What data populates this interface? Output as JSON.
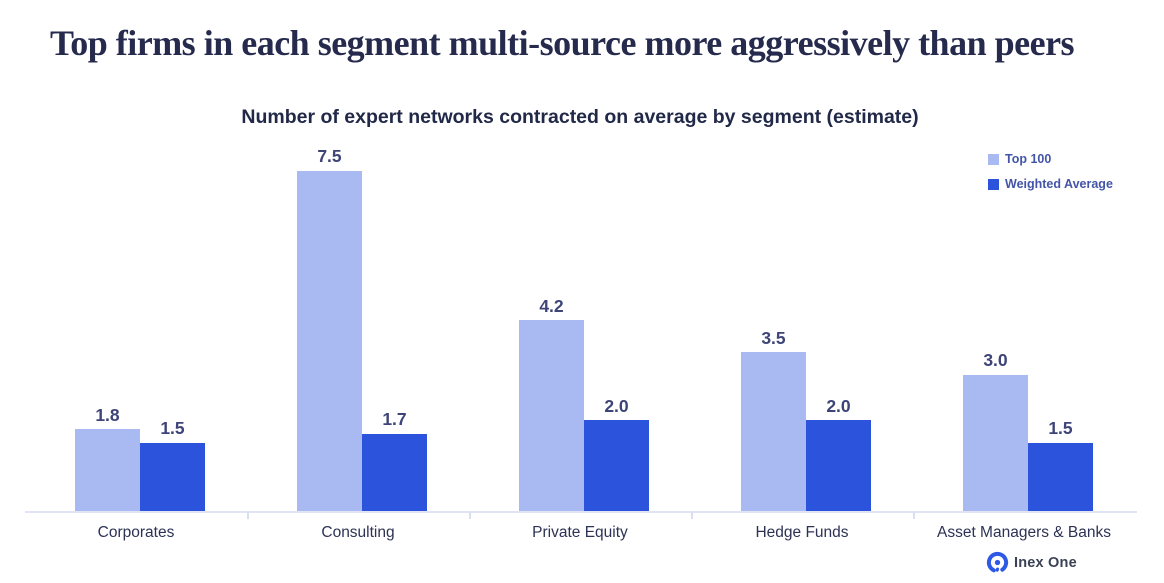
{
  "title": "Top firms in each segment multi-source more aggressively than peers",
  "chart_data": {
    "type": "bar",
    "title": "Number of expert networks contracted on average by segment (estimate)",
    "categories": [
      "Corporates",
      "Consulting",
      "Private Equity",
      "Hedge Funds",
      "Asset Managers & Banks"
    ],
    "series": [
      {
        "name": "Top 100",
        "color": "#A9BAF2",
        "values": [
          1.8,
          7.5,
          4.2,
          3.5,
          3.0
        ]
      },
      {
        "name": "Weighted Average",
        "color": "#2C53DC",
        "values": [
          1.5,
          1.7,
          2.0,
          2.0,
          1.5
        ]
      }
    ],
    "value_label_decimals": 1,
    "ylim": [
      0,
      7.5
    ],
    "grid": false,
    "legend_position": "top-right",
    "xlabel": "",
    "ylabel": ""
  },
  "colors": {
    "title_text": "#262B4E",
    "value_label_text": "#3E4477",
    "category_label_text": "#2C3254",
    "legend_text": "#4355A8",
    "axis_line": "#E0E4F4",
    "logo_blue": "#2E59E4",
    "logo_text": "#3A4154"
  },
  "branding": {
    "logo_text": "Inex One"
  }
}
